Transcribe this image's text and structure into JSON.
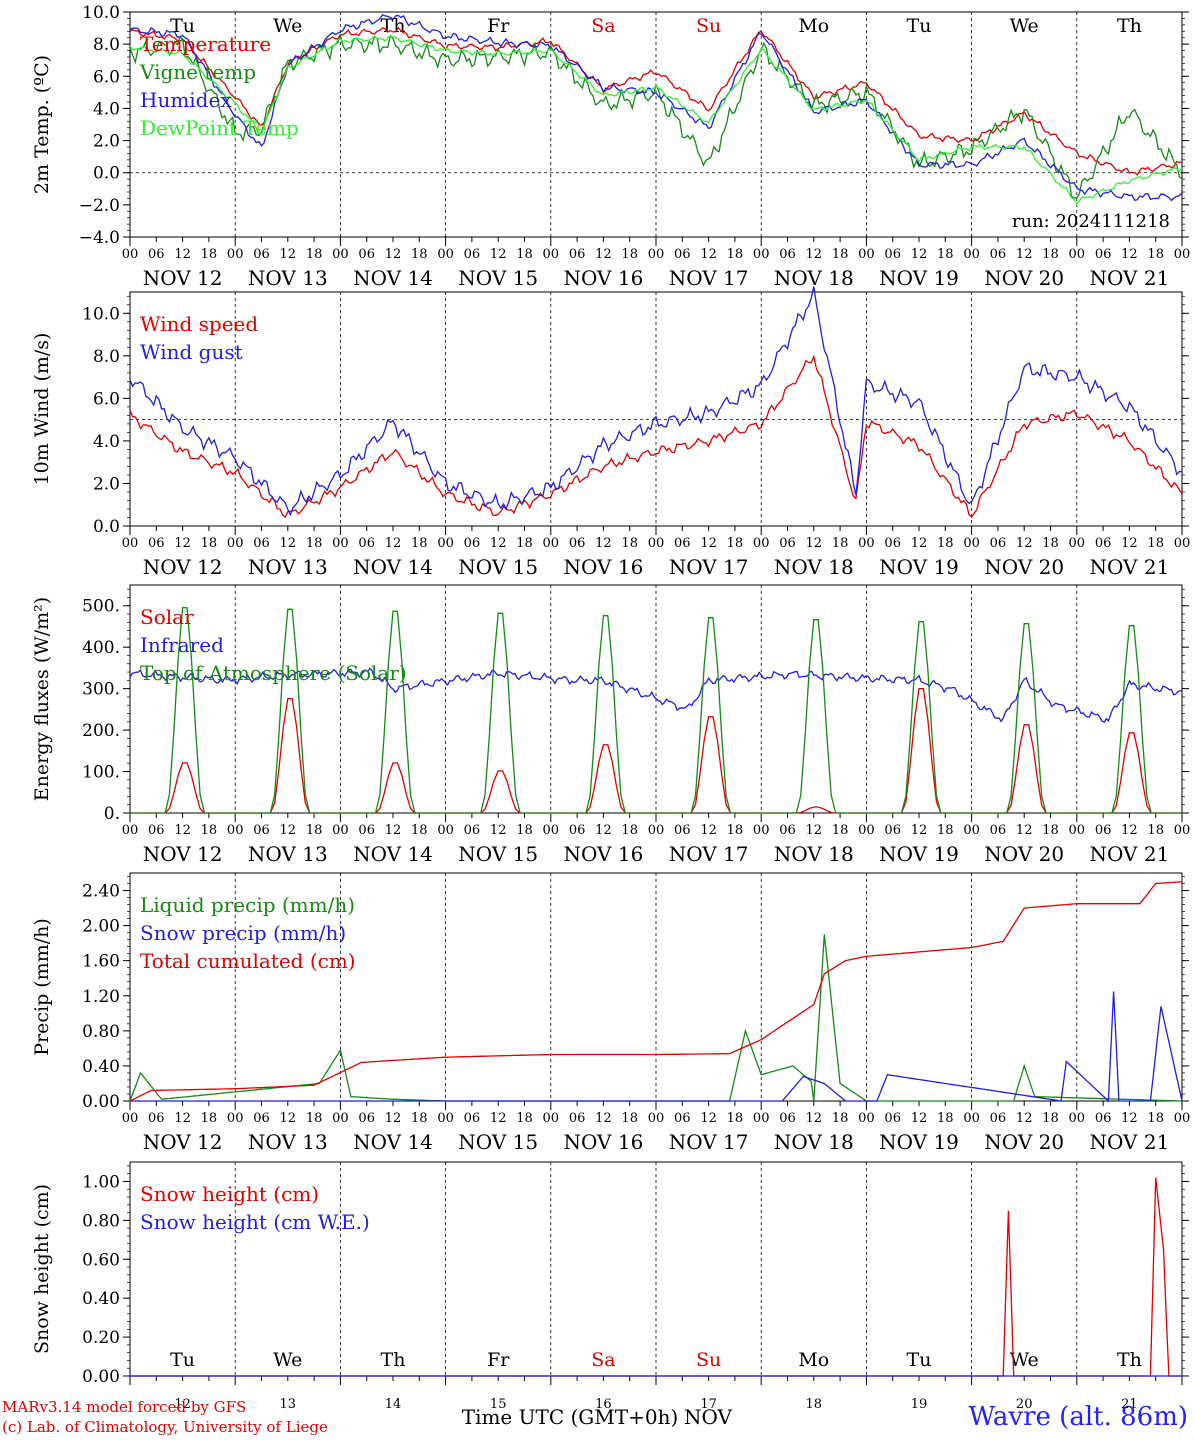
{
  "footer": {
    "credit_line1": "MARv3.14 model forced by GFS",
    "credit_line2": "(c) Lab. of Climatology, University of Liege",
    "station": "Wavre (alt. 86m)",
    "xaxis_title": "Time UTC (GMT+0h)",
    "month": "NOV"
  },
  "colors": {
    "red": "#e00000",
    "green": "#138a13",
    "blue": "#1f1fe0",
    "lightgreen": "#33ee33",
    "weekday": "#000000",
    "weekend": "#e00000"
  },
  "chart_data": [
    {
      "type": "line",
      "ylabel": "2m Temp. (ºC)",
      "ylim": [
        -4,
        10
      ],
      "yticks": [
        "10.0",
        "8.0",
        "6.0",
        "4.0",
        "2.0",
        "0.0",
        "−2.0",
        "−4.0"
      ],
      "reference_line": 0,
      "x_days": [
        "NOV 12",
        "NOV 13",
        "NOV 14",
        "NOV 15",
        "NOV 16",
        "NOV 17",
        "NOV 18",
        "NOV 19",
        "NOV 20",
        "NOV 21"
      ],
      "hour_ticks": [
        "00",
        "06",
        "12",
        "18"
      ],
      "weekday_labels": [
        "Tu",
        "We",
        "Th",
        "Fr",
        "Sa",
        "Su",
        "Mo",
        "Tu",
        "We",
        "Th"
      ],
      "annotation": "run: 2024111218",
      "x": [
        0,
        0.5,
        1,
        1.25,
        1.5,
        2,
        2.5,
        3,
        3.5,
        4,
        4.5,
        5,
        5.5,
        6,
        6.5,
        7,
        7.5,
        8,
        8.5,
        9,
        9.5,
        10
      ],
      "series": [
        {
          "name": "Temperature",
          "color": "red",
          "values": [
            8.8,
            8.3,
            4.7,
            2.8,
            6.8,
            8.6,
            8.9,
            7.9,
            7.8,
            8.2,
            5.2,
            6.3,
            3.9,
            8.9,
            4.7,
            5.6,
            2.3,
            2.0,
            3.7,
            1.2,
            0.0,
            0.6
          ]
        },
        {
          "name": "Vigne temp",
          "color": "green",
          "values": [
            7.5,
            8.0,
            2.5,
            2.7,
            6.8,
            8.0,
            8.0,
            7.0,
            7.2,
            7.5,
            4.2,
            5.0,
            0.5,
            7.7,
            4.2,
            5.0,
            0.5,
            1.5,
            3.9,
            -1.5,
            3.9,
            0.0
          ]
        },
        {
          "name": "Humidex",
          "color": "blue",
          "values": [
            8.9,
            8.6,
            3.6,
            1.5,
            6.7,
            8.9,
            9.8,
            8.5,
            8.1,
            7.9,
            5.3,
            5.0,
            2.8,
            8.8,
            3.8,
            4.5,
            0.5,
            0.5,
            2.0,
            -1.0,
            -1.5,
            -1.5
          ]
        },
        {
          "name": "DewPoint Temp",
          "color": "lightgreen",
          "values": [
            7.8,
            7.4,
            4.3,
            2.5,
            6.5,
            8.2,
            8.4,
            7.6,
            7.4,
            7.6,
            4.8,
            5.3,
            3.1,
            7.7,
            3.9,
            4.5,
            0.8,
            1.6,
            1.6,
            -1.8,
            -0.5,
            0.3
          ]
        }
      ]
    },
    {
      "type": "line",
      "ylabel": "10m Wind (m/s)",
      "ylim": [
        0,
        11
      ],
      "yticks": [
        "10.0",
        "8.0",
        "6.0",
        "4.0",
        "2.0",
        "0.0"
      ],
      "reference_line": 5,
      "x_days": [
        "NOV 12",
        "NOV 13",
        "NOV 14",
        "NOV 15",
        "NOV 16",
        "NOV 17",
        "NOV 18",
        "NOV 19",
        "NOV 20",
        "NOV 21"
      ],
      "hour_ticks": [
        "00",
        "06",
        "12",
        "18"
      ],
      "x": [
        0,
        0.5,
        1,
        1.5,
        2,
        2.5,
        3,
        3.5,
        4,
        4.5,
        5,
        5.5,
        6,
        6.5,
        6.9,
        7,
        7.5,
        8,
        8.5,
        9,
        9.5,
        10
      ],
      "series": [
        {
          "name": "Wind speed",
          "color": "red",
          "values": [
            5.2,
            3.5,
            2.5,
            0.5,
            1.8,
            3.5,
            1.5,
            0.6,
            1.5,
            2.8,
            3.5,
            4.0,
            4.8,
            8.0,
            1.1,
            4.9,
            3.8,
            0.5,
            4.8,
            5.3,
            4.0,
            1.5
          ]
        },
        {
          "name": "Wind gust",
          "color": "blue",
          "values": [
            7.0,
            4.6,
            3.2,
            0.8,
            2.4,
            4.9,
            2.0,
            1.0,
            1.8,
            3.8,
            4.8,
            5.3,
            6.6,
            10.9,
            1.5,
            6.7,
            5.8,
            0.9,
            7.4,
            7.0,
            5.6,
            2.5
          ]
        }
      ]
    },
    {
      "type": "line",
      "ylabel": "Energy fluxes (W/m²)",
      "ylim": [
        0,
        550
      ],
      "yticks": [
        "500.",
        "400.",
        "300.",
        "200.",
        "100.",
        "0."
      ],
      "x_days": [
        "NOV 12",
        "NOV 13",
        "NOV 14",
        "NOV 15",
        "NOV 16",
        "NOV 17",
        "NOV 18",
        "NOV 19",
        "NOV 20",
        "NOV 21"
      ],
      "hour_ticks": [
        "00",
        "06",
        "12",
        "18"
      ],
      "daily_peak_hour": 12.5,
      "series": [
        {
          "name": "Solar",
          "color": "red",
          "daily_peaks": [
            125,
            285,
            125,
            105,
            170,
            240,
            15,
            310,
            220,
            200
          ]
        },
        {
          "name": "Infrared",
          "color": "blue",
          "x": [
            0,
            0.9,
            1.5,
            2.3,
            2.5,
            3.5,
            4.2,
            4.5,
            5.3,
            5.5,
            6.3,
            7,
            7.5,
            7.8,
            8.3,
            8.5,
            8.8,
            9.3,
            9.5,
            10
          ],
          "values": [
            337,
            320,
            333,
            340,
            300,
            337,
            320,
            320,
            250,
            320,
            335,
            325,
            320,
            300,
            225,
            320,
            260,
            225,
            310,
            292
          ]
        },
        {
          "name": "Top of Atmosphere (Solar)",
          "color": "green",
          "daily_peaks": [
            512,
            508,
            503,
            498,
            492,
            487,
            482,
            477,
            472,
            467
          ]
        }
      ]
    },
    {
      "type": "line",
      "ylabel": "Precip (mm/h)",
      "ylim": [
        0,
        2.6
      ],
      "yticks": [
        "2.40",
        "2.00",
        "1.60",
        "1.20",
        "0.80",
        "0.40",
        "0.00"
      ],
      "x_days": [
        "NOV 12",
        "NOV 13",
        "NOV 14",
        "NOV 15",
        "NOV 16",
        "NOV 17",
        "NOV 18",
        "NOV 19",
        "NOV 20",
        "NOV 21"
      ],
      "hour_ticks": [
        "00",
        "06",
        "12",
        "18"
      ],
      "series": [
        {
          "name": "Liquid precip (mm/h)",
          "color": "green",
          "x": [
            0,
            0.1,
            0.3,
            1.8,
            2.0,
            2.1,
            2.5,
            3.0,
            5.7,
            5.85,
            6.0,
            6.3,
            6.5,
            6.5,
            6.6,
            6.75,
            7.0,
            8.4,
            8.5,
            8.6,
            10
          ],
          "values": [
            0.0,
            0.32,
            0.02,
            0.2,
            0.58,
            0.05,
            0.02,
            0.0,
            0.0,
            0.8,
            0.3,
            0.4,
            0.2,
            0.0,
            1.9,
            0.2,
            0.0,
            0.0,
            0.4,
            0.05,
            0.0
          ]
        },
        {
          "name": "Snow precip (mm/h)",
          "color": "blue",
          "x": [
            0,
            6.2,
            6.4,
            6.6,
            6.8,
            7.1,
            7.2,
            8.85,
            8.9,
            9.3,
            9.35,
            9.4,
            9.6,
            9.7,
            9.8,
            10
          ],
          "values": [
            0.0,
            0.0,
            0.28,
            0.2,
            0.0,
            0.0,
            0.3,
            0.0,
            0.45,
            0.0,
            1.25,
            0.0,
            0.0,
            0.0,
            1.08,
            0.0
          ]
        },
        {
          "name": "Total cumulated (cm)",
          "color": "red",
          "x": [
            0,
            0.2,
            1,
            1.75,
            2.2,
            3,
            4,
            5,
            5.7,
            6,
            6.5,
            6.6,
            6.8,
            7,
            8,
            8.3,
            8.5,
            9,
            9.6,
            9.75,
            10
          ],
          "values": [
            0.0,
            0.12,
            0.14,
            0.18,
            0.44,
            0.5,
            0.53,
            0.53,
            0.54,
            0.7,
            1.1,
            1.45,
            1.6,
            1.65,
            1.75,
            1.82,
            2.2,
            2.25,
            2.25,
            2.48,
            2.5
          ]
        }
      ]
    },
    {
      "type": "line",
      "ylabel": "Snow height (cm)",
      "ylim": [
        0,
        1.1
      ],
      "yticks": [
        "1.00",
        "0.80",
        "0.60",
        "0.40",
        "0.20",
        "0.00"
      ],
      "x_days": [
        "12",
        "13",
        "14",
        "15",
        "16",
        "17",
        "18",
        "19",
        "20",
        "21"
      ],
      "weekday_labels": [
        "Tu",
        "We",
        "Th",
        "Fr",
        "Sa",
        "Su",
        "Mo",
        "Tu",
        "We",
        "Th"
      ],
      "series": [
        {
          "name": "Snow height (cm)",
          "color": "red",
          "x": [
            0,
            8.3,
            8.35,
            8.4,
            9.7,
            9.75,
            9.83,
            9.87,
            10
          ],
          "values": [
            0.0,
            0.0,
            0.85,
            0.0,
            0.0,
            1.02,
            0.62,
            0.0,
            0.0
          ]
        },
        {
          "name": "Snow height (cm W.E.)",
          "color": "blue",
          "x": [
            0,
            10
          ],
          "values": [
            0.0,
            0.0
          ]
        }
      ]
    }
  ]
}
